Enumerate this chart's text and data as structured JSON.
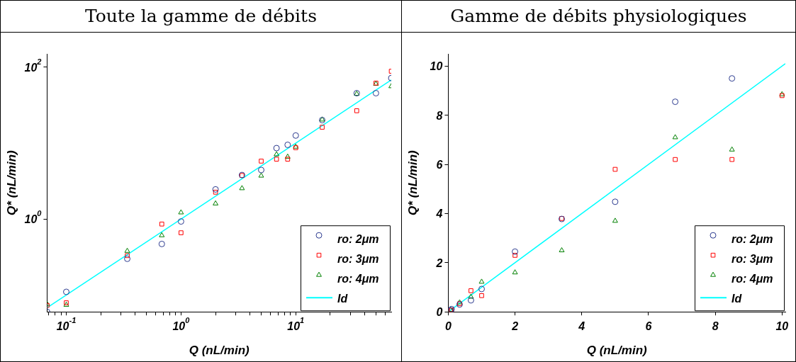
{
  "chart_data": [
    {
      "type": "scatter",
      "title": "Toute la gamme de débits",
      "xlabel": "Q (nL/min)",
      "ylabel": "Q* (nL/min)",
      "log": "xy",
      "legend": "bottom right",
      "xlim": [
        0.068,
        68
      ],
      "ylim": [
        0.06,
        150
      ],
      "xticks": [
        {
          "value": 0.07,
          "label": null
        },
        {
          "value": 0.08,
          "label": null
        },
        {
          "value": 0.09,
          "label": null
        },
        {
          "value": 0.1,
          "label": "10$^{-1}$"
        },
        {
          "value": 0.2,
          "label": null
        },
        {
          "value": 0.3,
          "label": null
        },
        {
          "value": 0.4,
          "label": null
        },
        {
          "value": 0.5,
          "label": null
        },
        {
          "value": 0.6,
          "label": null
        },
        {
          "value": 0.7,
          "label": null
        },
        {
          "value": 0.8,
          "label": null
        },
        {
          "value": 0.9,
          "label": null
        },
        {
          "value": 1,
          "label": "10$^{0}$"
        },
        {
          "value": 2,
          "label": null
        },
        {
          "value": 3,
          "label": null
        },
        {
          "value": 4,
          "label": null
        },
        {
          "value": 5,
          "label": null
        },
        {
          "value": 6,
          "label": null
        },
        {
          "value": 7,
          "label": null
        },
        {
          "value": 8,
          "label": null
        },
        {
          "value": 9,
          "label": null
        },
        {
          "value": 10,
          "label": "10$^{1}$"
        },
        {
          "value": 20,
          "label": null
        },
        {
          "value": 30,
          "label": null
        },
        {
          "value": 40,
          "label": null
        },
        {
          "value": 50,
          "label": null
        },
        {
          "value": 60,
          "label": null
        }
      ],
      "yticks": [
        {
          "value": 1,
          "label": "10$^{0}$"
        },
        {
          "value": 100,
          "label": "10$^{2}$"
        }
      ],
      "x": [
        0.068,
        0.1,
        0.34,
        0.68,
        1,
        2,
        3.4,
        5,
        6.8,
        8.5,
        10,
        17,
        34,
        50,
        68
      ],
      "series": [
        {
          "name": "ro: 2μm",
          "color": "#2b3a8f",
          "marker": "circle",
          "values": [
            0.06,
            0.11,
            0.3,
            0.47,
            0.93,
            2.46,
            3.8,
            4.43,
            8.6,
            9.5,
            12.6,
            20.1,
            45.5,
            45.5,
            72
          ]
        },
        {
          "name": "ro: 3μm",
          "color": "#ff0000",
          "marker": "square",
          "values": [
            0.073,
            0.079,
            0.33,
            0.86,
            0.66,
            2.26,
            3.75,
            5.8,
            6.15,
            6.15,
            8.7,
            16.2,
            26.7,
            61.8,
            88.5
          ]
        },
        {
          "name": "ro: 4μm",
          "color": "#008000",
          "marker": "triangle",
          "values": [
            0.076,
            0.074,
            0.38,
            0.61,
            1.22,
            1.6,
            2.54,
            3.72,
            7.1,
            6.6,
            8.95,
            20.4,
            44.5,
            60.3,
            56
          ]
        },
        {
          "name": "Id",
          "type": "line",
          "color": "#00ffff",
          "marker": "none",
          "x": [
            0.068,
            68
          ],
          "values": [
            0.068,
            68
          ]
        }
      ]
    },
    {
      "type": "scatter",
      "title": "Gamme de débits physiologiques",
      "xlabel": "Q (nL/min)",
      "ylabel": "Q* (nL/min)",
      "legend": "bottom right",
      "xlim": [
        0,
        10.1
      ],
      "ylim": [
        0,
        10.5
      ],
      "xticks": [
        0,
        2,
        4,
        6,
        8,
        10
      ],
      "yticks": [
        0,
        2,
        4,
        6,
        8,
        10
      ],
      "x": [
        0.068,
        0.1,
        0.34,
        0.68,
        1,
        2,
        3.4,
        5,
        6.8,
        8.5,
        10
      ],
      "series": [
        {
          "name": "ro: 2μm",
          "color": "#2b3a8f",
          "marker": "circle",
          "values": [
            0.06,
            0.11,
            0.3,
            0.47,
            0.93,
            2.45,
            3.78,
            4.48,
            8.55,
            9.5,
            null
          ]
        },
        {
          "name": "ro: 3μm",
          "color": "#ff0000",
          "marker": "square",
          "values": [
            0.07,
            0.08,
            0.33,
            0.86,
            0.66,
            2.3,
            3.8,
            5.8,
            6.2,
            6.2,
            8.8
          ]
        },
        {
          "name": "ro: 4μm",
          "color": "#008000",
          "marker": "triangle",
          "values": [
            0.08,
            null,
            0.38,
            0.61,
            1.22,
            1.6,
            2.5,
            3.7,
            7.1,
            6.6,
            8.85
          ]
        },
        {
          "name": "Id",
          "type": "line",
          "color": "#00ffff",
          "marker": "none",
          "x": [
            0,
            10.1
          ],
          "values": [
            0,
            10.1
          ]
        }
      ]
    }
  ]
}
